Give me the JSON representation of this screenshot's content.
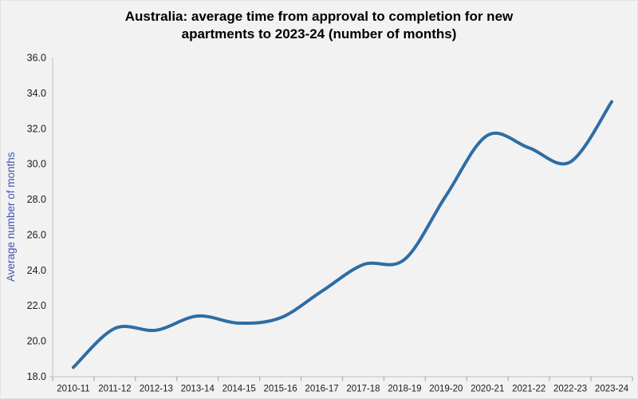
{
  "chart_data": {
    "type": "line",
    "title": "Australia: average time from approval to completion for new apartments to 2023-24 (number of months)",
    "categories": [
      "2010-11",
      "2011-12",
      "2012-13",
      "2013-14",
      "2014-15",
      "2015-16",
      "2016-17",
      "2017-18",
      "2018-19",
      "2019-20",
      "2020-21",
      "2021-22",
      "2022-23",
      "2023-24"
    ],
    "values": [
      18.5,
      20.7,
      20.6,
      21.4,
      21.0,
      21.3,
      22.8,
      24.3,
      24.6,
      28.2,
      31.6,
      30.9,
      30.1,
      33.5
    ],
    "xlabel": "",
    "ylabel": "Average number of months",
    "ylim": [
      18.0,
      36.0
    ],
    "ytick_step": 2.0,
    "ytick_labels": [
      "36.0",
      "34.0",
      "32.0",
      "30.0",
      "28.0",
      "26.0",
      "24.0",
      "22.0",
      "20.0",
      "18.0"
    ],
    "grid": false,
    "legend": "none",
    "line_style": "smooth"
  },
  "colors": {
    "line": "#2E6DA4",
    "ylabel_text": "#4355AD",
    "axis_line": "#C9C9C9",
    "tick_mark": "#ABABAB",
    "tick_label": "#1A1A1A",
    "title_text": "#000000",
    "background": "#F2F2F2"
  }
}
